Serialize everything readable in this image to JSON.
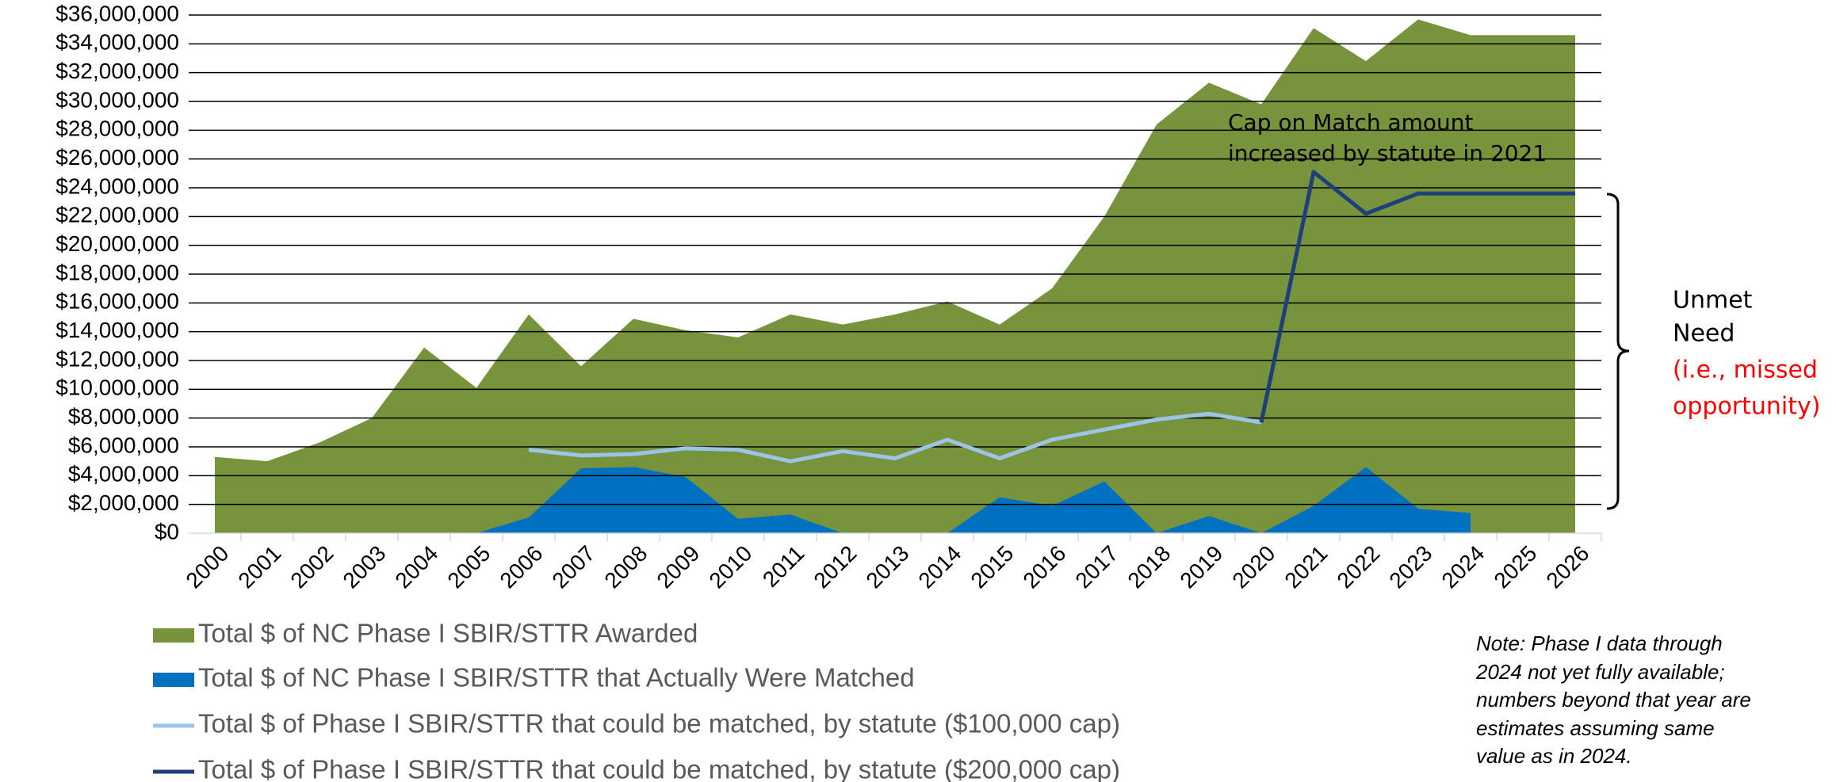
{
  "chart_data": {
    "type": "area",
    "categories": [
      "2000",
      "2001",
      "2002",
      "2003",
      "2004",
      "2005",
      "2006",
      "2007",
      "2008",
      "2009",
      "2010",
      "2011",
      "2012",
      "2013",
      "2014",
      "2015",
      "2016",
      "2017",
      "2018",
      "2019",
      "2020",
      "2021",
      "2022",
      "2023",
      "2024",
      "2025",
      "2026"
    ],
    "series": [
      {
        "name": "Total $ of NC Phase I SBIR/STTR Awarded",
        "type": "area",
        "color": "#77933c",
        "values": [
          5300000,
          5000000,
          6300000,
          8000000,
          12900000,
          10100000,
          15200000,
          11600000,
          14900000,
          14100000,
          13600000,
          15200000,
          14500000,
          15200000,
          16100000,
          14500000,
          17000000,
          22000000,
          28400000,
          31300000,
          29800000,
          35100000,
          32800000,
          35700000,
          34600000,
          34600000,
          34600000
        ]
      },
      {
        "name": "Total $ of NC Phase I SBIR/STTR that Actually Were Matched",
        "type": "area",
        "color": "#0070c0",
        "values": [
          null,
          null,
          null,
          null,
          null,
          0,
          1100000,
          4500000,
          4600000,
          3900000,
          1000000,
          1300000,
          0,
          0,
          0,
          2500000,
          1900000,
          3600000,
          0,
          1200000,
          0,
          1900000,
          4600000,
          1700000,
          1400000,
          null,
          null
        ]
      },
      {
        "name": "Total $ of Phase I SBIR/STTR that could be matched, by statute ($100,000 cap)",
        "type": "line",
        "color": "#9dc3e6",
        "values": [
          null,
          null,
          null,
          null,
          null,
          null,
          5800000,
          5400000,
          5500000,
          5900000,
          5800000,
          5000000,
          5700000,
          5200000,
          6500000,
          5200000,
          6500000,
          7200000,
          7900000,
          8300000,
          7700000,
          null,
          null,
          null,
          null,
          null,
          null
        ]
      },
      {
        "name": "Total $ of Phase I SBIR/STTR that could be matched, by statute ($200,000 cap)",
        "type": "line",
        "color": "#1f3f7a",
        "values": [
          null,
          null,
          null,
          null,
          null,
          null,
          null,
          null,
          null,
          null,
          null,
          null,
          null,
          null,
          null,
          null,
          null,
          null,
          null,
          null,
          7700000,
          25100000,
          22200000,
          23600000,
          23600000,
          23600000,
          23600000
        ]
      }
    ],
    "ylim": [
      0,
      36000000
    ],
    "yticks": [
      {
        "value": 0,
        "label": "$0"
      },
      {
        "value": 2000000,
        "label": "$2,000,000"
      },
      {
        "value": 4000000,
        "label": "$4,000,000"
      },
      {
        "value": 6000000,
        "label": "$6,000,000"
      },
      {
        "value": 8000000,
        "label": "$8,000,000"
      },
      {
        "value": 10000000,
        "label": "$10,000,000"
      },
      {
        "value": 12000000,
        "label": "$12,000,000"
      },
      {
        "value": 14000000,
        "label": "$14,000,000"
      },
      {
        "value": 16000000,
        "label": "$16,000,000"
      },
      {
        "value": 18000000,
        "label": "$18,000,000"
      },
      {
        "value": 20000000,
        "label": "$20,000,000"
      },
      {
        "value": 22000000,
        "label": "$22,000,000"
      },
      {
        "value": 24000000,
        "label": "$24,000,000"
      },
      {
        "value": 26000000,
        "label": "$26,000,000"
      },
      {
        "value": 28000000,
        "label": "$28,000,000"
      },
      {
        "value": 30000000,
        "label": "$30,000,000"
      },
      {
        "value": 32000000,
        "label": "$32,000,000"
      },
      {
        "value": 34000000,
        "label": "$34,000,000"
      },
      {
        "value": 36000000,
        "label": "$36,000,000"
      }
    ],
    "grid": true,
    "annotation": [
      "Cap on Match amount",
      "increased by statute in 2021"
    ],
    "unmet_need": [
      "Unmet",
      "Need",
      "(i.e., missed",
      "opportunity)"
    ],
    "note": [
      "Note: Phase I data through",
      "2024 not yet fully available;",
      "numbers beyond that year are",
      "estimates assuming same",
      "value as in 2024."
    ]
  }
}
